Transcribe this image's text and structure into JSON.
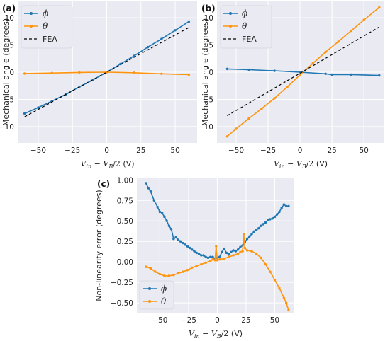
{
  "colors": {
    "phi": "#1f77b4",
    "theta": "#ff950e",
    "fea": "#000000",
    "plot_bg": "#eaeaf2",
    "grid": "#ffffff"
  },
  "chart_data": [
    {
      "panel": "(a)",
      "type": "line",
      "ylabel": "Mechanical angle (degrees)",
      "xlabel": "V_in − V_B/2 (V)",
      "xlim": [
        -65,
        66
      ],
      "ylim": [
        -13,
        13
      ],
      "xticks": [
        -50,
        -25,
        0,
        25,
        50
      ],
      "yticks": [
        -10,
        -5,
        0,
        5,
        10
      ],
      "legend": "top-left",
      "series": [
        {
          "name": "ϕ",
          "style": "marker-line",
          "color": "#1f77b4",
          "x": [
            -60,
            -50,
            -40,
            -30,
            -20,
            -10,
            0,
            10,
            20,
            30,
            40,
            50,
            60
          ],
          "y": [
            -7.6,
            -6.5,
            -5.3,
            -4.1,
            -2.7,
            -1.4,
            0.0,
            1.5,
            3.0,
            4.6,
            6.1,
            7.7,
            9.3
          ]
        },
        {
          "name": "θ",
          "style": "marker-line",
          "color": "#ff950e",
          "x": [
            -60,
            -40,
            -20,
            0,
            20,
            40,
            60
          ],
          "y": [
            -0.25,
            -0.15,
            -0.05,
            0.0,
            -0.1,
            -0.3,
            -0.45
          ]
        },
        {
          "name": "FEA",
          "style": "dashed",
          "color": "#000000",
          "x": [
            -60,
            60
          ],
          "y": [
            -8.2,
            8.2
          ]
        }
      ]
    },
    {
      "panel": "(b)",
      "type": "line",
      "ylabel": "Mechanical angle (degrees)",
      "xlabel": "V_in − V_B/2 (V)",
      "xlim": [
        -65,
        66
      ],
      "ylim": [
        -13,
        13
      ],
      "xticks": [
        -50,
        -25,
        0,
        25,
        50
      ],
      "yticks": [
        -10,
        -5,
        0,
        5,
        10
      ],
      "legend": "top-left",
      "series": [
        {
          "name": "ϕ",
          "style": "marker-line",
          "color": "#1f77b4",
          "x": [
            -57,
            -40,
            -20,
            0,
            20,
            25,
            40,
            62
          ],
          "y": [
            0.6,
            0.45,
            0.25,
            0.0,
            -0.3,
            -0.45,
            -0.45,
            -0.6
          ]
        },
        {
          "name": "θ",
          "style": "marker-line",
          "color": "#ff950e",
          "x": [
            -57,
            -50,
            -40,
            -30,
            -20,
            -10,
            0,
            10,
            20,
            30,
            40,
            50,
            62
          ],
          "y": [
            -11.8,
            -10.4,
            -8.5,
            -6.7,
            -4.8,
            -2.7,
            -0.5,
            1.6,
            3.7,
            5.6,
            7.6,
            9.6,
            11.9
          ]
        },
        {
          "name": "FEA",
          "style": "dashed",
          "color": "#000000",
          "x": [
            -57,
            62
          ],
          "y": [
            -8.0,
            8.3
          ]
        }
      ]
    },
    {
      "panel": "(c)",
      "type": "line",
      "ylabel": "Non-linearity error (degrees)",
      "xlabel": "V_in − V_B/2 (V)",
      "xlim": [
        -70,
        67
      ],
      "ylim": [
        -0.62,
        1.02
      ],
      "xticks": [
        -50,
        -25,
        0,
        25,
        50
      ],
      "yticks": [
        -0.5,
        -0.25,
        0.0,
        0.25,
        0.5,
        0.75,
        1.0
      ],
      "ytick_labels": [
        "−0.50",
        "−0.25",
        "0.00",
        "0.25",
        "0.50",
        "0.75",
        "1.00"
      ],
      "legend": "bottom-left",
      "series": [
        {
          "name": "ϕ",
          "style": "marker-line",
          "color": "#1f77b4",
          "x": [
            -62,
            -60,
            -58,
            -55,
            -52,
            -50,
            -48,
            -46,
            -44,
            -42,
            -40,
            -38,
            -36,
            -34,
            -32,
            -30,
            -28,
            -26,
            -24,
            -22,
            -20,
            -18,
            -16,
            -14,
            -12,
            -10,
            -8,
            -6,
            -4,
            -2,
            0,
            2,
            4,
            6,
            8,
            10,
            12,
            14,
            16,
            18,
            20,
            22,
            24,
            26,
            28,
            30,
            32,
            34,
            36,
            38,
            40,
            42,
            44,
            46,
            48,
            50,
            52,
            54,
            56,
            58,
            60,
            62
          ],
          "y": [
            0.96,
            0.9,
            0.86,
            0.75,
            0.67,
            0.61,
            0.6,
            0.55,
            0.5,
            0.44,
            0.4,
            0.28,
            0.3,
            0.27,
            0.25,
            0.23,
            0.21,
            0.19,
            0.17,
            0.15,
            0.13,
            0.11,
            0.1,
            0.08,
            0.08,
            0.06,
            0.05,
            0.06,
            0.06,
            0.04,
            0.05,
            0.06,
            0.12,
            0.16,
            0.11,
            0.09,
            0.12,
            0.14,
            0.13,
            0.15,
            0.18,
            0.2,
            0.24,
            0.28,
            0.31,
            0.34,
            0.37,
            0.39,
            0.41,
            0.44,
            0.46,
            0.48,
            0.51,
            0.52,
            0.53,
            0.55,
            0.58,
            0.61,
            0.66,
            0.7,
            0.68,
            0.68
          ]
        },
        {
          "name": "θ",
          "style": "marker-line",
          "color": "#ff950e",
          "x": [
            -62,
            -58,
            -54,
            -50,
            -46,
            -42,
            -38,
            -34,
            -30,
            -26,
            -22,
            -18,
            -14,
            -10,
            -6,
            -4,
            -2,
            -1,
            0,
            2,
            6,
            10,
            14,
            18,
            20,
            22,
            23,
            24,
            26,
            30,
            34,
            38,
            42,
            46,
            50,
            54,
            58,
            60,
            62
          ],
          "y": [
            -0.06,
            -0.08,
            -0.12,
            -0.15,
            -0.17,
            -0.17,
            -0.16,
            -0.14,
            -0.12,
            -0.1,
            -0.07,
            -0.05,
            -0.03,
            -0.01,
            0.01,
            0.03,
            0.02,
            0.19,
            0.02,
            0.03,
            0.04,
            0.06,
            0.08,
            0.1,
            0.12,
            0.13,
            0.34,
            0.17,
            0.14,
            0.13,
            0.1,
            0.05,
            -0.03,
            -0.12,
            -0.22,
            -0.32,
            -0.44,
            -0.5,
            -0.59
          ]
        }
      ]
    }
  ]
}
